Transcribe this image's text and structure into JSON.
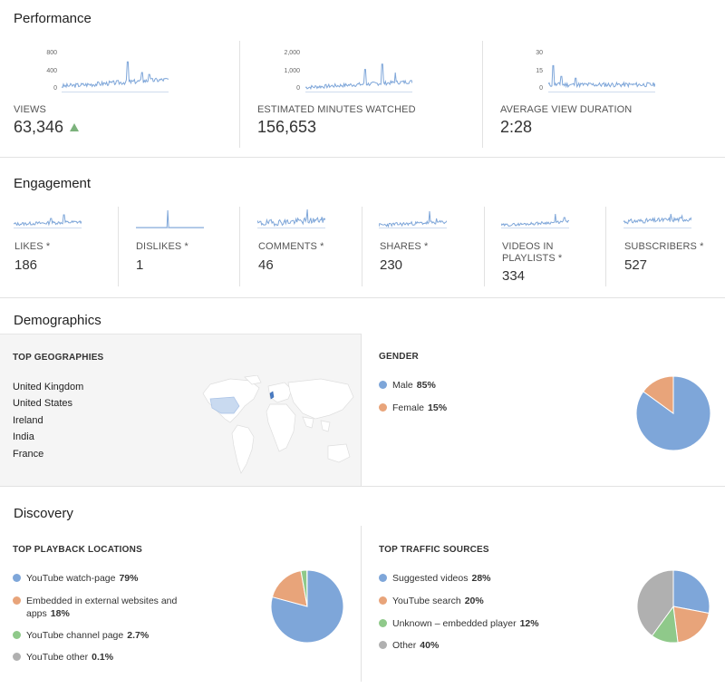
{
  "performance": {
    "title": "Performance",
    "metrics": [
      {
        "label": "VIEWS",
        "value": "63,346",
        "ticks": [
          "800",
          "400",
          "0"
        ],
        "trend": "up"
      },
      {
        "label": "ESTIMATED MINUTES WATCHED",
        "value": "156,653",
        "ticks": [
          "2,000",
          "1,000",
          "0"
        ]
      },
      {
        "label": "AVERAGE VIEW DURATION",
        "value": "2:28",
        "ticks": [
          "30",
          "15",
          "0"
        ]
      }
    ]
  },
  "engagement": {
    "title": "Engagement",
    "metrics": [
      {
        "label": "LIKES *",
        "value": "186"
      },
      {
        "label": "DISLIKES *",
        "value": "1"
      },
      {
        "label": "COMMENTS *",
        "value": "46"
      },
      {
        "label": "SHARES *",
        "value": "230"
      },
      {
        "label": "VIDEOS IN PLAYLISTS *",
        "value": "334"
      },
      {
        "label": "SUBSCRIBERS *",
        "value": "527"
      }
    ]
  },
  "demographics": {
    "title": "Demographics",
    "geographies": {
      "title": "TOP GEOGRAPHIES",
      "items": [
        "United Kingdom",
        "United States",
        "Ireland",
        "India",
        "France"
      ]
    },
    "gender": {
      "title": "GENDER",
      "items": [
        {
          "label": "Male",
          "value": "85%",
          "pct": 85,
          "color": "#7ea6d9"
        },
        {
          "label": "Female",
          "value": "15%",
          "pct": 15,
          "color": "#e8a47a"
        }
      ]
    }
  },
  "discovery": {
    "title": "Discovery",
    "playback": {
      "title": "TOP PLAYBACK LOCATIONS",
      "items": [
        {
          "label": "YouTube watch-page",
          "value": "79%",
          "pct": 79.2,
          "color": "#7ea6d9"
        },
        {
          "label": "Embedded in external websites and apps",
          "value": "18%",
          "pct": 18,
          "color": "#e8a47a"
        },
        {
          "label": "YouTube channel page",
          "value": "2.7%",
          "pct": 2.7,
          "color": "#8fc98a"
        },
        {
          "label": "YouTube other",
          "value": "0.1%",
          "pct": 0.1,
          "color": "#b0b0b0"
        }
      ]
    },
    "traffic": {
      "title": "TOP TRAFFIC SOURCES",
      "items": [
        {
          "label": "Suggested videos",
          "value": "28%",
          "pct": 28,
          "color": "#7ea6d9"
        },
        {
          "label": "YouTube search",
          "value": "20%",
          "pct": 20,
          "color": "#e8a47a"
        },
        {
          "label": "Unknown – embedded player",
          "value": "12%",
          "pct": 12,
          "color": "#8fc98a"
        },
        {
          "label": "Other",
          "value": "40%",
          "pct": 40,
          "color": "#b0b0b0"
        }
      ]
    }
  },
  "colors": {
    "spark": "#7ea6d9",
    "accent_up": "#7cb27c"
  }
}
